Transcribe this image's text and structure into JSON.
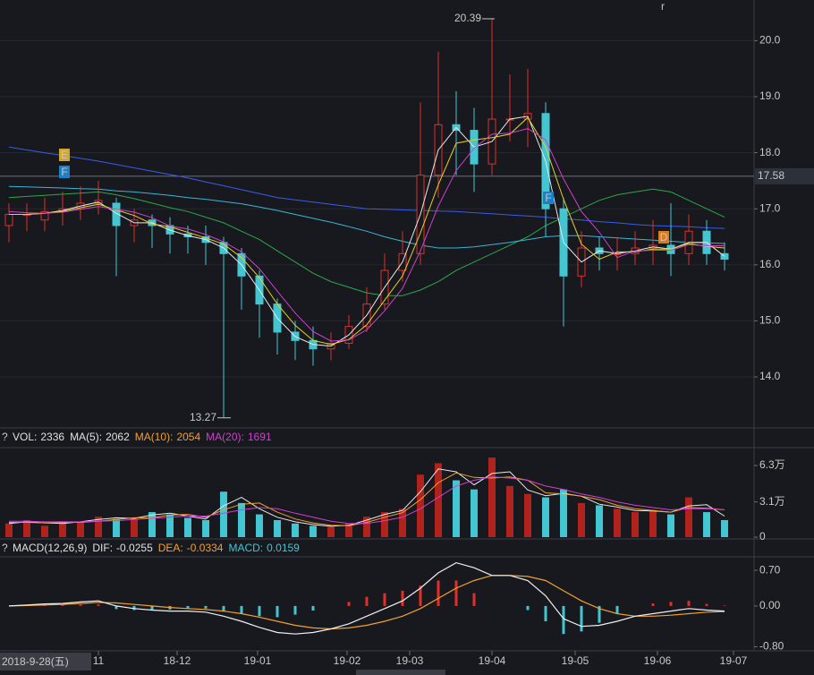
{
  "chart_data": [
    {
      "type": "candlestick",
      "open": [
        16.7,
        16.9,
        16.8,
        16.95,
        17.0,
        17.1,
        17.1,
        16.7,
        16.8,
        16.7,
        16.55,
        16.5,
        16.4,
        16.2,
        15.8,
        15.3,
        14.8,
        14.65,
        14.5,
        14.6,
        14.9,
        15.3,
        15.9,
        16.2,
        17.6,
        18.5,
        18.4,
        17.8,
        18.6,
        18.6,
        18.7,
        17.0,
        15.8,
        16.3,
        16.2,
        16.2,
        16.3,
        16.35,
        16.2,
        16.6,
        16.2
      ],
      "high": [
        17.1,
        17.1,
        17.2,
        17.3,
        17.4,
        17.5,
        17.2,
        17.0,
        16.9,
        16.85,
        16.7,
        16.7,
        16.5,
        16.3,
        15.9,
        15.4,
        15.0,
        14.9,
        14.8,
        15.1,
        15.6,
        16.2,
        16.6,
        18.9,
        19.8,
        19.1,
        18.8,
        20.39,
        19.4,
        19.5,
        18.9,
        17.2,
        16.6,
        16.5,
        16.5,
        16.6,
        16.8,
        17.1,
        16.9,
        16.8,
        16.4
      ],
      "low": [
        16.4,
        16.6,
        16.6,
        16.7,
        16.8,
        16.9,
        15.8,
        16.4,
        16.3,
        16.2,
        16.2,
        16.0,
        13.27,
        15.2,
        14.7,
        14.4,
        14.3,
        14.2,
        14.3,
        14.5,
        14.8,
        15.2,
        15.7,
        16.0,
        17.2,
        17.6,
        17.3,
        17.6,
        18.2,
        18.1,
        16.5,
        14.9,
        15.6,
        15.9,
        15.9,
        16.0,
        16.0,
        15.8,
        16.0,
        16.0,
        15.9
      ],
      "close": [
        16.9,
        16.9,
        16.95,
        17.0,
        17.1,
        17.15,
        16.7,
        16.8,
        16.7,
        16.55,
        16.5,
        16.4,
        16.2,
        15.8,
        15.3,
        14.8,
        14.65,
        14.5,
        14.6,
        14.9,
        15.3,
        15.9,
        16.2,
        17.6,
        18.5,
        18.4,
        17.8,
        18.6,
        18.6,
        18.7,
        17.0,
        15.8,
        16.3,
        16.2,
        16.2,
        16.3,
        16.35,
        16.2,
        16.6,
        16.2,
        16.1
      ],
      "up_color": "#e0302a",
      "down_color": "#43c6d1",
      "series": [
        {
          "color": "#e8e8e8",
          "values": [
            16.9,
            16.9,
            16.92,
            16.97,
            17.05,
            17.12,
            16.92,
            16.75,
            16.75,
            16.62,
            16.52,
            16.45,
            16.3,
            16.0,
            15.55,
            15.05,
            14.72,
            14.58,
            14.55,
            14.75,
            15.1,
            15.6,
            16.05,
            16.9,
            18.05,
            18.45,
            18.1,
            18.2,
            18.6,
            18.65,
            17.85,
            16.4,
            16.05,
            16.25,
            16.2,
            16.25,
            16.32,
            16.28,
            16.4,
            16.4,
            16.15
          ]
        },
        {
          "color": "#e8d020",
          "values": [
            16.9,
            16.9,
            16.92,
            16.95,
            17.02,
            17.08,
            16.98,
            16.88,
            16.73,
            16.68,
            16.58,
            16.48,
            16.37,
            16.13,
            15.77,
            15.3,
            14.92,
            14.65,
            14.58,
            14.67,
            14.93,
            15.37,
            15.8,
            16.57,
            17.43,
            18.17,
            18.23,
            18.27,
            18.33,
            18.63,
            18.1,
            17.17,
            16.37,
            16.1,
            16.23,
            16.23,
            16.28,
            16.28,
            16.38,
            16.33,
            16.3
          ]
        },
        {
          "color": "#d040d0",
          "values": [
            16.95,
            16.93,
            16.92,
            16.94,
            16.99,
            17.04,
            16.99,
            16.94,
            16.84,
            16.69,
            16.64,
            16.54,
            16.41,
            16.23,
            15.93,
            15.53,
            15.14,
            14.81,
            14.64,
            14.66,
            14.84,
            15.18,
            15.58,
            16.25,
            17.05,
            17.68,
            18.08,
            18.33,
            18.35,
            18.43,
            18.23,
            17.53,
            16.95,
            16.58,
            16.13,
            16.25,
            16.26,
            16.26,
            16.36,
            16.34,
            16.34
          ]
        },
        {
          "color": "#2aa84a",
          "values": [
            17.2,
            17.22,
            17.24,
            17.26,
            17.28,
            17.3,
            17.25,
            17.18,
            17.1,
            17.02,
            16.95,
            16.85,
            16.75,
            16.6,
            16.45,
            16.25,
            16.05,
            15.85,
            15.7,
            15.6,
            15.5,
            15.45,
            15.45,
            15.55,
            15.7,
            15.9,
            16.05,
            16.2,
            16.35,
            16.5,
            16.7,
            16.85,
            17.0,
            17.15,
            17.25,
            17.3,
            17.35,
            17.3,
            17.15,
            17.0,
            16.85
          ]
        },
        {
          "color": "#3ab4d8",
          "values": [
            17.4,
            17.39,
            17.38,
            17.37,
            17.36,
            17.35,
            17.32,
            17.3,
            17.27,
            17.24,
            17.2,
            17.17,
            17.13,
            17.09,
            17.03,
            16.97,
            16.9,
            16.83,
            16.76,
            16.68,
            16.6,
            16.5,
            16.42,
            16.35,
            16.3,
            16.3,
            16.32,
            16.36,
            16.4,
            16.45,
            16.5,
            16.52,
            16.52,
            16.5,
            16.48,
            16.46,
            16.44,
            16.42,
            16.4,
            16.39,
            16.38
          ]
        },
        {
          "color": "#3a5ce8",
          "values": [
            18.1,
            18.05,
            18.0,
            17.95,
            17.9,
            17.85,
            17.79,
            17.73,
            17.67,
            17.61,
            17.55,
            17.48,
            17.41,
            17.34,
            17.27,
            17.2,
            17.16,
            17.12,
            17.08,
            17.04,
            17.0,
            16.99,
            16.98,
            16.97,
            16.96,
            16.95,
            16.93,
            16.91,
            16.89,
            16.87,
            16.85,
            16.82,
            16.8,
            16.77,
            16.75,
            16.72,
            16.7,
            16.69,
            16.68,
            16.66,
            16.65
          ]
        }
      ],
      "ylim": [
        13.09,
        20.725
      ],
      "yticks": [
        {
          "value": 20,
          "label": "20.0"
        },
        {
          "value": 19,
          "label": "19.0"
        },
        {
          "value": 18,
          "label": "18.0"
        },
        {
          "value": 17,
          "label": "17.0"
        },
        {
          "value": 16,
          "label": "16.0"
        },
        {
          "value": 15,
          "label": "15.0"
        },
        {
          "value": 14,
          "label": "14.0"
        }
      ],
      "ref_line": 17.58,
      "markers": [
        "E",
        "F",
        "F",
        "D"
      ],
      "corner_mark": "r"
    },
    {
      "type": "volume",
      "icon": "?",
      "header": [
        {
          "label": "VOL:",
          "value": 2336,
          "color": "#e0e0e0"
        },
        {
          "label": "MA(5):",
          "value": 2062,
          "color": "#e0e0e0"
        },
        {
          "label": "MA(10):",
          "value": 2054,
          "color": "#f0a030"
        },
        {
          "label": "MA(20):",
          "value": 1691,
          "color": "#d040d0"
        }
      ],
      "values": [
        12000,
        15000,
        10000,
        14000,
        13000,
        18000,
        16000,
        17000,
        22000,
        20000,
        17000,
        15000,
        40000,
        30000,
        20000,
        15000,
        12000,
        10000,
        9000,
        12000,
        18000,
        22000,
        25000,
        55000,
        65000,
        50000,
        42000,
        70000,
        45000,
        38000,
        35000,
        42000,
        30000,
        28000,
        25000,
        22000,
        24000,
        20000,
        35000,
        22000,
        15000
      ],
      "series": [
        {
          "color": "#e8e8e8",
          "values": [
            12000,
            13500,
            12500,
            12000,
            13500,
            15500,
            17000,
            16500,
            19500,
            21000,
            18500,
            16000,
            27500,
            35000,
            25000,
            17500,
            13500,
            11000,
            9500,
            10500,
            15000,
            20000,
            23500,
            40000,
            60000,
            57500,
            46000,
            56000,
            57500,
            41500,
            36500,
            38500,
            36000,
            29000,
            26500,
            23500,
            23000,
            22000,
            27500,
            28500,
            18500
          ]
        },
        {
          "color": "#f0a030",
          "values": [
            13000,
            13000,
            12500,
            13000,
            13000,
            14000,
            15500,
            17000,
            17000,
            19500,
            20000,
            17500,
            24000,
            29000,
            30000,
            22000,
            16000,
            12500,
            10500,
            10000,
            13000,
            17500,
            21500,
            33000,
            48000,
            56500,
            52500,
            52000,
            53000,
            50000,
            39000,
            38000,
            36000,
            33000,
            28000,
            25000,
            23500,
            22000,
            26000,
            25500,
            24000
          ]
        },
        {
          "color": "#d040d0",
          "values": [
            14000,
            14000,
            13500,
            13500,
            13500,
            14000,
            14500,
            15500,
            16500,
            17500,
            18500,
            18500,
            21000,
            24000,
            26000,
            25000,
            21000,
            17500,
            14000,
            12000,
            12000,
            14500,
            17500,
            25000,
            35000,
            45000,
            50000,
            53000,
            52000,
            50000,
            45000,
            42000,
            38000,
            35000,
            31000,
            28000,
            26000,
            24000,
            25000,
            25000,
            24000
          ]
        }
      ],
      "ylim": [
        0,
        76000
      ],
      "yticks": [
        {
          "value": 63000,
          "label": "6.3万"
        },
        {
          "value": 31000,
          "label": "3.1万"
        },
        0
      ]
    },
    {
      "type": "macd",
      "icon": "?",
      "title": "MACD(12,26,9)",
      "header": [
        {
          "label": "DIF:",
          "value": -0.0255,
          "color": "#e0e0e0"
        },
        {
          "label": "DEA:",
          "value": -0.0334,
          "color": "#f0a030"
        },
        {
          "label": "MACD:",
          "value": 0.0159,
          "color": "#43c6d1"
        }
      ],
      "dif": [
        0.0,
        0.02,
        0.04,
        0.05,
        0.08,
        0.1,
        0.0,
        -0.05,
        -0.08,
        -0.1,
        -0.1,
        -0.12,
        -0.2,
        -0.3,
        -0.42,
        -0.52,
        -0.55,
        -0.52,
        -0.45,
        -0.35,
        -0.2,
        -0.05,
        0.1,
        0.35,
        0.65,
        0.85,
        0.75,
        0.6,
        0.6,
        0.5,
        0.2,
        -0.25,
        -0.4,
        -0.38,
        -0.3,
        -0.2,
        -0.15,
        -0.1,
        -0.05,
        -0.08,
        -0.1
      ],
      "dea": [
        0.0,
        0.01,
        0.02,
        0.03,
        0.05,
        0.07,
        0.06,
        0.03,
        0.0,
        -0.03,
        -0.05,
        -0.07,
        -0.1,
        -0.15,
        -0.22,
        -0.3,
        -0.38,
        -0.43,
        -0.45,
        -0.43,
        -0.38,
        -0.3,
        -0.2,
        -0.05,
        0.15,
        0.35,
        0.5,
        0.6,
        0.6,
        0.58,
        0.5,
        0.3,
        0.1,
        -0.05,
        -0.15,
        -0.2,
        -0.2,
        -0.18,
        -0.15,
        -0.12,
        -0.11
      ],
      "hist": [
        0,
        0.01,
        0.02,
        0.02,
        0.03,
        0.03,
        -0.06,
        -0.08,
        -0.08,
        -0.07,
        -0.05,
        -0.05,
        -0.1,
        -0.15,
        -0.2,
        -0.22,
        -0.17,
        -0.09,
        0,
        0.08,
        0.18,
        0.25,
        0.3,
        0.4,
        0.5,
        0.5,
        0.25,
        0,
        0,
        -0.08,
        -0.3,
        -0.55,
        -0.5,
        -0.33,
        -0.15,
        0,
        0.05,
        0.08,
        0.1,
        0.04,
        0.01
      ],
      "dif_color": "#f0f0f0",
      "dea_color": "#f0a030",
      "ylim": [
        -0.88,
        0.93
      ],
      "yticks": [
        {
          "value": 0.7,
          "label": "0.70"
        },
        {
          "value": 0,
          "label": "0.00"
        },
        {
          "value": -0.8,
          "label": "-0.80"
        }
      ],
      "xlim": [
        -0.5,
        41.65
      ],
      "cursor_date": "2018-9-28(五)",
      "xticks": [
        {
          "value": 5,
          "label": "11"
        },
        {
          "value": 9.4,
          "label": "18-12"
        },
        {
          "value": 13.9,
          "label": "19-01"
        },
        {
          "value": 18.9,
          "label": "19-02"
        },
        {
          "value": 22.4,
          "label": "19-03"
        },
        {
          "value": 27,
          "label": "19-04"
        },
        {
          "value": 31.65,
          "label": "19-05"
        },
        {
          "value": 36.25,
          "label": "19-06"
        },
        {
          "value": 40.5,
          "label": "19-07"
        }
      ]
    }
  ]
}
